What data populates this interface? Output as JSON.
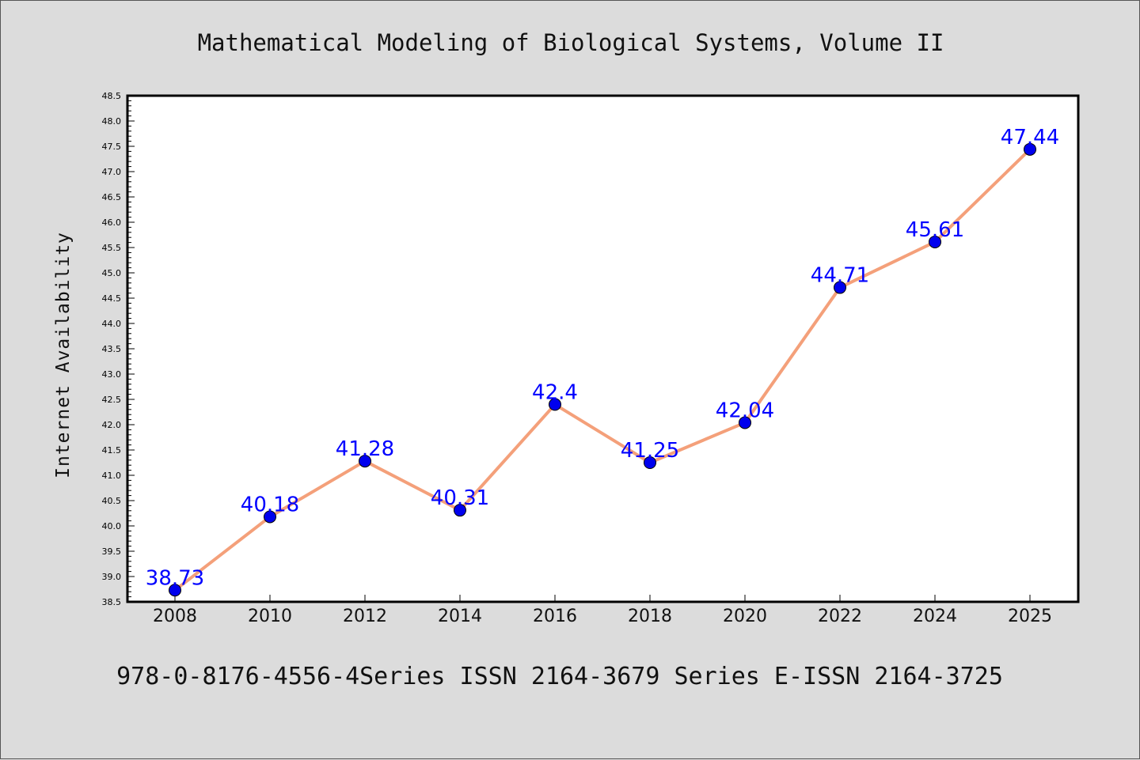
{
  "chart_data": {
    "type": "line",
    "title": "Mathematical Modeling of Biological Systems, Volume II",
    "ylabel": "Internet Availability",
    "xlabel": "",
    "footer": "978-0-8176-4556-4Series ISSN 2164-3679 Series E-ISSN 2164-3725",
    "categories": [
      "2008",
      "2010",
      "2012",
      "2014",
      "2016",
      "2018",
      "2020",
      "2022",
      "2024",
      "2025"
    ],
    "values": [
      38.73,
      40.18,
      41.28,
      40.31,
      42.4,
      41.25,
      42.04,
      44.71,
      45.61,
      47.44
    ],
    "data_labels": [
      "38.73",
      "40.18",
      "41.28",
      "40.31",
      "42.4",
      "41.25",
      "42.04",
      "44.71",
      "45.61",
      "47.44"
    ],
    "ylim": [
      38.5,
      48.5
    ],
    "yticks": [
      "38.5",
      "39.0",
      "39.5",
      "40.0",
      "40.5",
      "41.0",
      "41.5",
      "42.0",
      "42.5",
      "43.0",
      "43.5",
      "44.0",
      "44.5",
      "45.0",
      "45.5",
      "46.0",
      "46.5",
      "47.0",
      "47.5",
      "48.0",
      "48.5"
    ],
    "grid": false,
    "colors": {
      "line": "#f4a07a",
      "marker": "#0000ee",
      "label": "#0000ff",
      "background": "#dcdcdc",
      "plot_area": "#ffffff"
    }
  }
}
